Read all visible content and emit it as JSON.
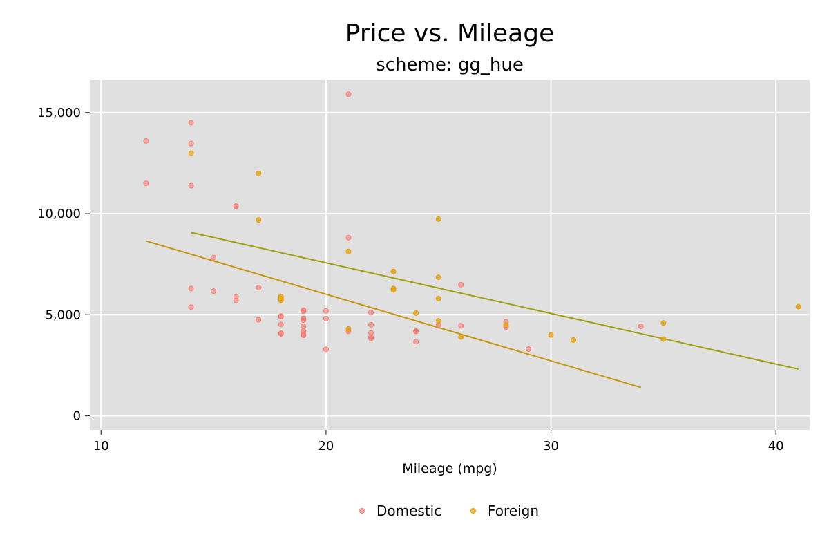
{
  "chart_data": {
    "type": "scatter",
    "title": "Price vs. Mileage",
    "subtitle": "scheme: gg_hue",
    "xlabel": "Mileage (mpg)",
    "ylabel": "",
    "xlim": [
      9.5,
      41.5
    ],
    "ylim": [
      -700,
      16600
    ],
    "xticks": [
      10,
      20,
      30,
      40
    ],
    "xtick_labels": [
      "10",
      "20",
      "30",
      "40"
    ],
    "yticks": [
      0,
      5000,
      10000,
      15000
    ],
    "ytick_labels": [
      "0",
      "5,000",
      "10,000",
      "15,000"
    ],
    "grid": true,
    "legend_position": "bottom",
    "colors": {
      "panel": "#e0e0e0",
      "grid": "#ffffff",
      "domestic_point": "#f8766d",
      "foreign_point": "#e69f00",
      "domestic_fit": "#c8960a",
      "foreign_fit": "#9fa010"
    },
    "series": [
      {
        "name": "Domestic",
        "points": [
          [
            21,
            15906
          ],
          [
            14,
            14500
          ],
          [
            12,
            13594
          ],
          [
            14,
            13466
          ],
          [
            12,
            11497
          ],
          [
            14,
            11385
          ],
          [
            16,
            10372
          ],
          [
            16,
            10371
          ],
          [
            21,
            8814
          ],
          [
            15,
            7827
          ],
          [
            26,
            6486
          ],
          [
            17,
            6342
          ],
          [
            14,
            6295
          ],
          [
            15,
            6165
          ],
          [
            16,
            5886
          ],
          [
            16,
            5705
          ],
          [
            14,
            5379
          ],
          [
            19,
            5222
          ],
          [
            19,
            5172
          ],
          [
            20,
            5189
          ],
          [
            22,
            5104
          ],
          [
            19,
            4816
          ],
          [
            20,
            4814
          ],
          [
            17,
            4749
          ],
          [
            18,
            4934
          ],
          [
            18,
            4906
          ],
          [
            19,
            4733
          ],
          [
            22,
            4504
          ],
          [
            18,
            4516
          ],
          [
            25,
            4499
          ],
          [
            26,
            4453
          ],
          [
            19,
            4425
          ],
          [
            34,
            4425
          ],
          [
            28,
            4389
          ],
          [
            24,
            4187
          ],
          [
            24,
            4172
          ],
          [
            19,
            4195
          ],
          [
            22,
            4099
          ],
          [
            18,
            4082
          ],
          [
            18,
            4060
          ],
          [
            19,
            4010
          ],
          [
            22,
            3895
          ],
          [
            22,
            3829
          ],
          [
            24,
            3667
          ],
          [
            20,
            3291
          ],
          [
            29,
            3299
          ],
          [
            21,
            4181
          ],
          [
            28,
            4647
          ],
          [
            19,
            3984
          ]
        ]
      },
      {
        "name": "Foreign",
        "points": [
          [
            14,
            12990
          ],
          [
            17,
            11995
          ],
          [
            17,
            9690
          ],
          [
            25,
            9735
          ],
          [
            21,
            8129
          ],
          [
            23,
            7140
          ],
          [
            25,
            6850
          ],
          [
            23,
            6295
          ],
          [
            23,
            6229
          ],
          [
            18,
            5899
          ],
          [
            18,
            5799
          ],
          [
            18,
            5719
          ],
          [
            25,
            5799
          ],
          [
            24,
            5079
          ],
          [
            25,
            4697
          ],
          [
            35,
            4589
          ],
          [
            21,
            4296
          ],
          [
            28,
            4499
          ],
          [
            41,
            5397
          ],
          [
            30,
            3995
          ],
          [
            26,
            3895
          ],
          [
            35,
            3798
          ],
          [
            31,
            3748
          ]
        ]
      }
    ],
    "fit_lines": [
      {
        "name": "Domestic fit",
        "x": [
          12,
          34
        ],
        "y": [
          8650,
          1400
        ]
      },
      {
        "name": "Foreign fit",
        "x": [
          14,
          41
        ],
        "y": [
          9070,
          2310
        ]
      }
    ],
    "legend": [
      "Domestic",
      "Foreign"
    ]
  }
}
